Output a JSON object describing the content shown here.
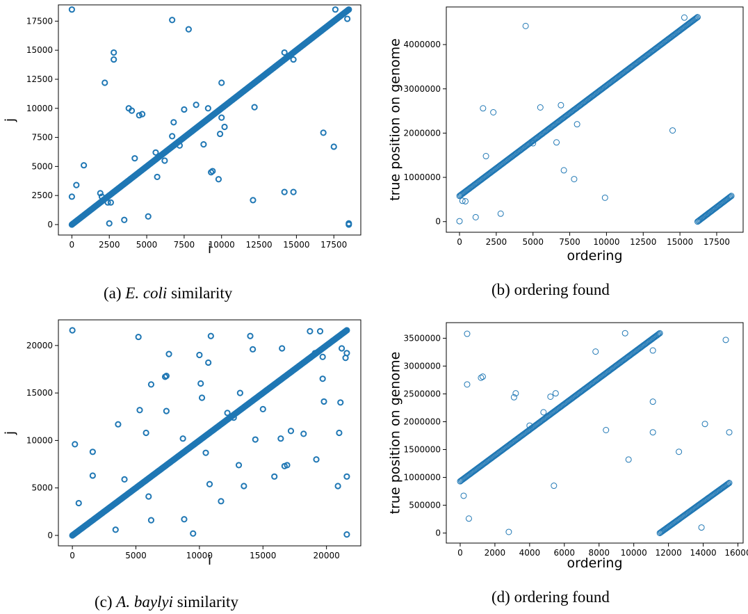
{
  "captions": [
    {
      "letter": "(a)",
      "species": "E. coli",
      "rest": "similarity"
    },
    {
      "letter": "(b)",
      "species": "",
      "rest": "ordering found"
    },
    {
      "letter": "(c)",
      "species": "A. baylyi",
      "rest": "similarity"
    },
    {
      "letter": "(d)",
      "species": "",
      "rest": "ordering found"
    }
  ],
  "colors": {
    "marker": "#1f77b4",
    "axis": "#000000"
  },
  "chart_data": [
    {
      "type": "scatter",
      "title": "",
      "xlabel": "i",
      "ylabel": "j",
      "xlim": [
        -900,
        19300
      ],
      "ylim": [
        -900,
        18900
      ],
      "xticks": [
        0,
        2500,
        5000,
        7500,
        10000,
        12500,
        15000,
        17500
      ],
      "yticks": [
        0,
        2500,
        5000,
        7500,
        10000,
        12500,
        15000,
        17500
      ],
      "marker": "open-circle-thick",
      "lines": [
        {
          "x": [
            0,
            18500
          ],
          "y": [
            0,
            18500
          ]
        }
      ],
      "points": {
        "x": [
          0,
          0,
          300,
          800,
          1900,
          2000,
          2200,
          2400,
          2600,
          2500,
          2800,
          2800,
          3500,
          3800,
          4000,
          4200,
          4500,
          4700,
          5100,
          5600,
          5700,
          6200,
          6700,
          6700,
          6800,
          7200,
          7500,
          7800,
          8300,
          8800,
          9100,
          9300,
          9400,
          9800,
          9900,
          10000,
          10000,
          10200,
          12100,
          12200,
          14200,
          14200,
          14800,
          14800,
          16800,
          17500,
          17600,
          18400,
          18500,
          18500
        ],
        "y": [
          18500,
          2400,
          3400,
          5100,
          2700,
          2400,
          12200,
          1900,
          1900,
          100,
          14800,
          14200,
          400,
          10000,
          9800,
          5700,
          9400,
          9500,
          700,
          6200,
          4100,
          5500,
          17600,
          7600,
          8800,
          6800,
          9900,
          16800,
          10300,
          6900,
          10000,
          4500,
          4600,
          3900,
          7800,
          12200,
          9200,
          8400,
          2100,
          10100,
          2800,
          14800,
          2800,
          14200,
          7900,
          6700,
          18500,
          17700,
          0,
          100
        ]
      }
    },
    {
      "type": "scatter",
      "title": "",
      "xlabel": "ordering",
      "ylabel": "true position on genome",
      "xlim": [
        -900,
        19300
      ],
      "ylim": [
        -240000,
        4850000
      ],
      "xticks": [
        0,
        2500,
        5000,
        7500,
        10000,
        12500,
        15000,
        17500
      ],
      "yticks": [
        0,
        1000000,
        2000000,
        3000000,
        4000000
      ],
      "marker": "open-circle-thin",
      "lines": [
        {
          "x": [
            0,
            16200
          ],
          "y": [
            580000,
            4620000
          ]
        },
        {
          "x": [
            16200,
            18500
          ],
          "y": [
            0,
            580000
          ]
        }
      ],
      "points": {
        "x": [
          0,
          200,
          400,
          1100,
          1600,
          1800,
          2300,
          2800,
          4500,
          5000,
          5500,
          6600,
          6900,
          7100,
          7800,
          8000,
          9900,
          14500,
          15300
        ],
        "y": [
          10000,
          470000,
          460000,
          100000,
          2560000,
          1480000,
          2470000,
          180000,
          4420000,
          1770000,
          2580000,
          1790000,
          2630000,
          1160000,
          960000,
          2200000,
          540000,
          2060000,
          4610000
        ]
      }
    },
    {
      "type": "scatter",
      "title": "",
      "xlabel": "i",
      "ylabel": "j",
      "xlim": [
        -1100,
        22700
      ],
      "ylim": [
        -1100,
        22700
      ],
      "xticks": [
        0,
        5000,
        10000,
        15000,
        20000
      ],
      "yticks": [
        0,
        5000,
        10000,
        15000,
        20000
      ],
      "marker": "open-circle-thick",
      "lines": [
        {
          "x": [
            0,
            21600
          ],
          "y": [
            0,
            21600
          ]
        }
      ],
      "points": {
        "x": [
          0,
          200,
          500,
          1600,
          1600,
          3400,
          3600,
          4100,
          5200,
          5300,
          5800,
          6000,
          6200,
          6200,
          7300,
          7400,
          7400,
          7600,
          8700,
          8800,
          9500,
          10000,
          10100,
          10200,
          10500,
          10700,
          10800,
          10900,
          11700,
          12200,
          12700,
          13100,
          13200,
          13500,
          14000,
          14200,
          14400,
          15000,
          15900,
          16400,
          16500,
          16700,
          16900,
          17200,
          18200,
          18700,
          19100,
          19200,
          19500,
          19700,
          19700,
          19800,
          20900,
          21000,
          21100,
          21200,
          21500,
          21600,
          21600,
          21600
        ],
        "y": [
          21600,
          9600,
          3400,
          8800,
          6300,
          600,
          11700,
          5900,
          20900,
          13200,
          10800,
          4100,
          15900,
          1600,
          16700,
          16800,
          13100,
          19100,
          10200,
          1700,
          200,
          19000,
          16000,
          14500,
          8700,
          18200,
          5400,
          21000,
          3600,
          12900,
          12400,
          7400,
          15000,
          5200,
          21000,
          19600,
          10100,
          13300,
          6200,
          10200,
          19700,
          7300,
          7400,
          11000,
          10700,
          21500,
          19200,
          8000,
          21500,
          16500,
          18800,
          14100,
          5200,
          10800,
          14000,
          19700,
          18700,
          6200,
          100,
          19200
        ]
      }
    },
    {
      "type": "scatter",
      "title": "",
      "xlabel": "ordering",
      "ylabel": "true position on genome",
      "xlim": [
        -800,
        16300
      ],
      "ylim": [
        -180000,
        3780000
      ],
      "xticks": [
        0,
        2000,
        4000,
        6000,
        8000,
        10000,
        12000,
        14000,
        16000
      ],
      "yticks": [
        0,
        500000,
        1000000,
        1500000,
        2000000,
        2500000,
        3000000,
        3500000
      ],
      "marker": "open-circle-thin",
      "lines": [
        {
          "x": [
            0,
            11500
          ],
          "y": [
            930000,
            3590000
          ]
        },
        {
          "x": [
            11500,
            15500
          ],
          "y": [
            0,
            900000
          ]
        }
      ],
      "points": {
        "x": [
          200,
          400,
          400,
          500,
          1200,
          1300,
          2800,
          3100,
          3200,
          4000,
          4800,
          5200,
          5400,
          5500,
          7800,
          8400,
          9500,
          9700,
          11100,
          11100,
          11100,
          12600,
          13900,
          14100,
          15300,
          15500
        ],
        "y": [
          670000,
          3580000,
          2670000,
          260000,
          2790000,
          2810000,
          20000,
          2440000,
          2510000,
          1930000,
          2170000,
          2450000,
          850000,
          2510000,
          3260000,
          1850000,
          3590000,
          1320000,
          3280000,
          2360000,
          1810000,
          1460000,
          100000,
          1960000,
          3470000,
          1810000
        ]
      }
    }
  ]
}
